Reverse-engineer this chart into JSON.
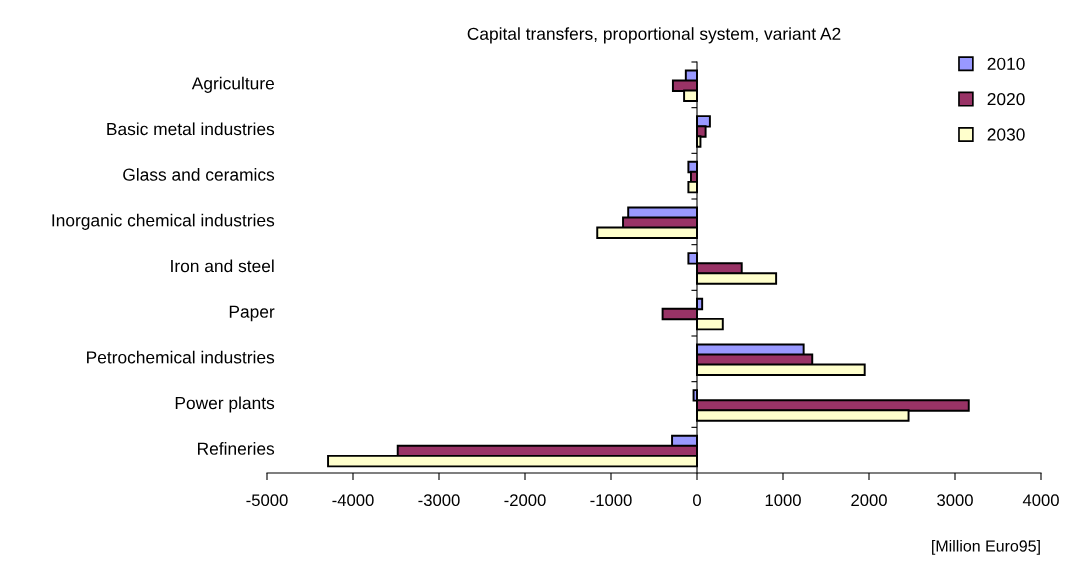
{
  "chart_data": {
    "type": "bar",
    "orientation": "horizontal",
    "title": "Capital transfers, proportional system, variant A2",
    "xlabel": "[Million Euro95]",
    "categories": [
      "Agriculture",
      "Basic metal industries",
      "Glass and ceramics",
      "Inorganic chemical industries",
      "Iron and steel",
      "Paper",
      "Petrochemical industries",
      "Power plants",
      "Refineries"
    ],
    "series": [
      {
        "name": "2010",
        "color": "#9999ff",
        "values": [
          -130,
          150,
          -100,
          -800,
          -100,
          60,
          1240,
          -40,
          -290
        ]
      },
      {
        "name": "2020",
        "color": "#993366",
        "values": [
          -280,
          100,
          -70,
          -860,
          520,
          -400,
          1340,
          3160,
          -3480
        ]
      },
      {
        "name": "2030",
        "color": "#ffffcc",
        "values": [
          -150,
          40,
          -100,
          -1160,
          920,
          300,
          1950,
          2460,
          -4290
        ]
      }
    ],
    "xlim": [
      -5000,
      4000
    ],
    "xticks": [
      -5000,
      -4000,
      -3000,
      -2000,
      -1000,
      0,
      1000,
      2000,
      3000,
      4000
    ],
    "legend": "top right"
  }
}
